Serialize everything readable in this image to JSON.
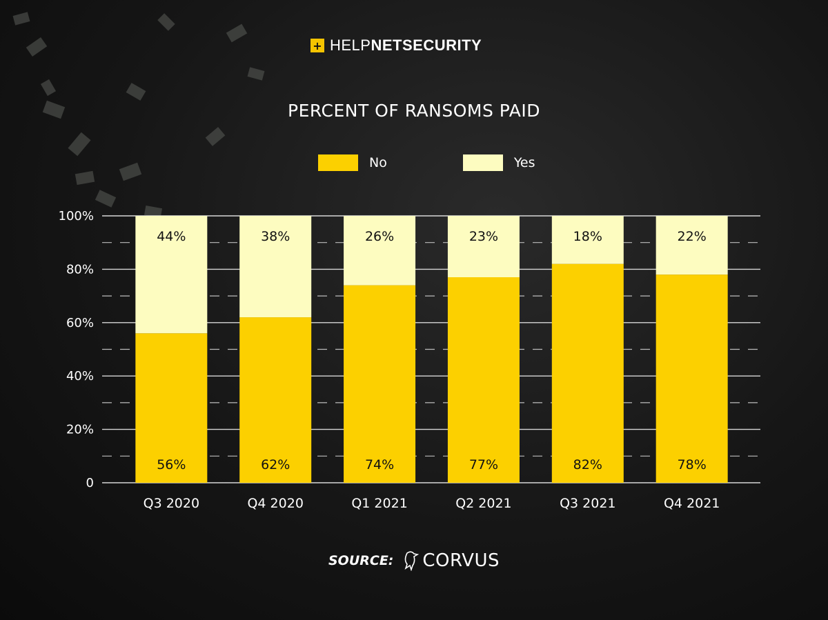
{
  "header": {
    "logo_light": "HELP",
    "logo_bold": "NETSECURITY"
  },
  "chart_data": {
    "type": "bar",
    "stacked": true,
    "title": "PERCENT OF RANSOMS PAID",
    "categories": [
      "Q3 2020",
      "Q4 2020",
      "Q1 2021",
      "Q2 2021",
      "Q3 2021",
      "Q4 2021"
    ],
    "series": [
      {
        "name": "No",
        "values": [
          56,
          62,
          74,
          77,
          82,
          78
        ],
        "color": "#fcd000"
      },
      {
        "name": "Yes",
        "values": [
          44,
          38,
          26,
          23,
          18,
          22
        ],
        "color": "#fdfcc0"
      }
    ],
    "y_ticks": [
      "0",
      "20%",
      "40%",
      "60%",
      "80%",
      "100%"
    ],
    "ylim": [
      0,
      100
    ],
    "grid": true,
    "legend_position": "top-center"
  },
  "footer": {
    "source_label": "SOURCE:",
    "source_name": "CORVUS"
  }
}
